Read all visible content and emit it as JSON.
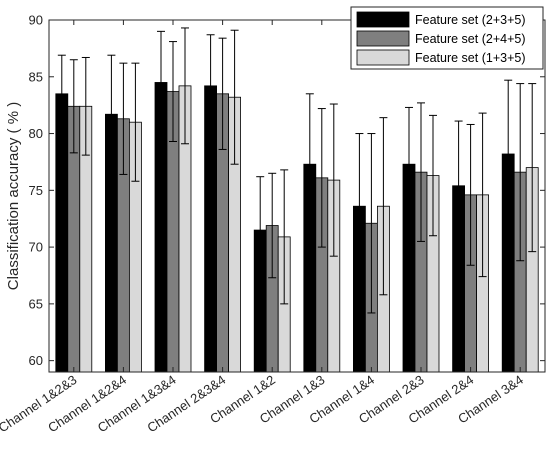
{
  "chart_data": {
    "type": "bar",
    "ylabel": "Classification accuracy ( % )",
    "xlabel": "",
    "title": "",
    "ylim": [
      59,
      90
    ],
    "yticks": [
      60,
      65,
      70,
      75,
      80,
      85,
      90
    ],
    "legend_position": "top-right",
    "grid": false,
    "categories": [
      "Channel 1&2&3",
      "Channel 1&2&4",
      "Channel 1&3&4",
      "Channel 2&3&4",
      "Channel 1&2",
      "Channel 1&3",
      "Channel 1&4",
      "Channel 2&3",
      "Channel 2&4",
      "Channel 3&4"
    ],
    "series": [
      {
        "name": "Feature set (2+3+5)",
        "color": "#000000",
        "values": [
          83.5,
          81.7,
          84.5,
          84.2,
          71.5,
          77.3,
          73.6,
          77.3,
          75.4,
          78.2
        ],
        "error": [
          3.4,
          5.2,
          4.5,
          4.5,
          4.7,
          6.2,
          6.4,
          5.0,
          5.7,
          6.5
        ]
      },
      {
        "name": "Feature set (2+4+5)",
        "color": "#7f7f7f",
        "values": [
          82.4,
          81.3,
          83.7,
          83.5,
          71.9,
          76.1,
          72.1,
          76.6,
          74.6,
          76.6
        ],
        "error": [
          4.1,
          4.9,
          4.4,
          4.9,
          4.6,
          6.1,
          7.9,
          6.1,
          6.2,
          7.8
        ]
      },
      {
        "name": "Feature set (1+3+5)",
        "color": "#d9d9d9",
        "values": [
          82.4,
          81.0,
          84.2,
          83.2,
          70.9,
          75.9,
          73.6,
          76.3,
          74.6,
          77.0
        ],
        "error": [
          4.3,
          5.2,
          5.1,
          5.9,
          5.9,
          6.7,
          7.8,
          5.3,
          7.2,
          7.4
        ]
      }
    ]
  }
}
